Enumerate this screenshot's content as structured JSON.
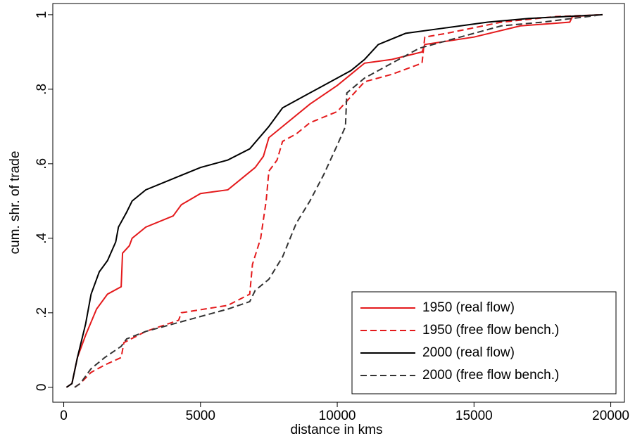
{
  "chart_data": {
    "type": "line",
    "xlabel": "distance in kms",
    "ylabel": "cum. shr. of trade",
    "xlim": [
      -400,
      20500
    ],
    "ylim": [
      -0.04,
      1.03
    ],
    "xticks": [
      0,
      5000,
      10000,
      15000,
      20000
    ],
    "yticks": [
      0,
      {
        "value": 0.2,
        "label": ".2"
      },
      {
        "value": 0.4,
        "label": ".4"
      },
      {
        "value": 0.6,
        "label": ".6"
      },
      {
        "value": 0.8,
        "label": ".8"
      },
      1
    ],
    "legend": "lower right",
    "series": [
      {
        "name": "1950 (real flow)",
        "color": "#e41a1c",
        "dashed": false,
        "x": [
          100,
          300,
          500,
          800,
          1200,
          1600,
          2100,
          2150,
          2400,
          2500,
          3000,
          4000,
          4300,
          5000,
          6000,
          6500,
          7000,
          7300,
          7500,
          8000,
          9000,
          10000,
          10500,
          11000,
          12000,
          13100,
          13200,
          15000,
          16700,
          18500,
          18600,
          19700
        ],
        "values": [
          0,
          0.01,
          0.08,
          0.14,
          0.21,
          0.25,
          0.27,
          0.36,
          0.38,
          0.4,
          0.43,
          0.46,
          0.49,
          0.52,
          0.53,
          0.56,
          0.59,
          0.62,
          0.67,
          0.7,
          0.76,
          0.81,
          0.84,
          0.87,
          0.88,
          0.9,
          0.92,
          0.94,
          0.97,
          0.98,
          0.995,
          1.0
        ]
      },
      {
        "name": "1950 (free flow bench.)",
        "color": "#e41a1c",
        "dashed": true,
        "x": [
          400,
          600,
          1000,
          1500,
          2100,
          2200,
          3000,
          4200,
          4300,
          6000,
          6800,
          6900,
          7200,
          7400,
          7500,
          7800,
          8000,
          8500,
          9000,
          10000,
          10500,
          11000,
          12000,
          13100,
          13200,
          14000,
          16000,
          18000,
          19700
        ],
        "values": [
          0,
          0.01,
          0.04,
          0.06,
          0.08,
          0.12,
          0.15,
          0.18,
          0.2,
          0.22,
          0.25,
          0.33,
          0.4,
          0.5,
          0.58,
          0.61,
          0.66,
          0.68,
          0.71,
          0.74,
          0.78,
          0.82,
          0.84,
          0.87,
          0.94,
          0.95,
          0.98,
          0.995,
          1.0
        ]
      },
      {
        "name": "2000 (real flow)",
        "color": "#000000",
        "dashed": false,
        "x": [
          100,
          300,
          500,
          800,
          1000,
          1300,
          1600,
          1900,
          2000,
          2300,
          2500,
          3000,
          4000,
          5000,
          6000,
          6800,
          7500,
          8000,
          9000,
          10000,
          10500,
          11000,
          11500,
          12500,
          14000,
          15500,
          17000,
          19700
        ],
        "values": [
          0,
          0.01,
          0.08,
          0.17,
          0.25,
          0.31,
          0.34,
          0.39,
          0.43,
          0.47,
          0.5,
          0.53,
          0.56,
          0.59,
          0.61,
          0.64,
          0.7,
          0.75,
          0.79,
          0.83,
          0.85,
          0.88,
          0.92,
          0.95,
          0.965,
          0.98,
          0.99,
          1.0
        ]
      },
      {
        "name": "2000 (free flow bench.)",
        "color": "#333333",
        "dashed": true,
        "x": [
          400,
          600,
          1000,
          1500,
          2100,
          2300,
          3000,
          4000,
          5000,
          6000,
          6800,
          7000,
          7500,
          8000,
          8500,
          9000,
          9500,
          10000,
          10300,
          10350,
          11000,
          12000,
          13000,
          14000,
          15000,
          16000,
          17500,
          19700
        ],
        "values": [
          0,
          0.01,
          0.05,
          0.08,
          0.11,
          0.13,
          0.15,
          0.17,
          0.19,
          0.21,
          0.23,
          0.26,
          0.29,
          0.35,
          0.44,
          0.5,
          0.57,
          0.65,
          0.7,
          0.79,
          0.83,
          0.87,
          0.91,
          0.93,
          0.95,
          0.97,
          0.98,
          1.0
        ]
      }
    ]
  }
}
